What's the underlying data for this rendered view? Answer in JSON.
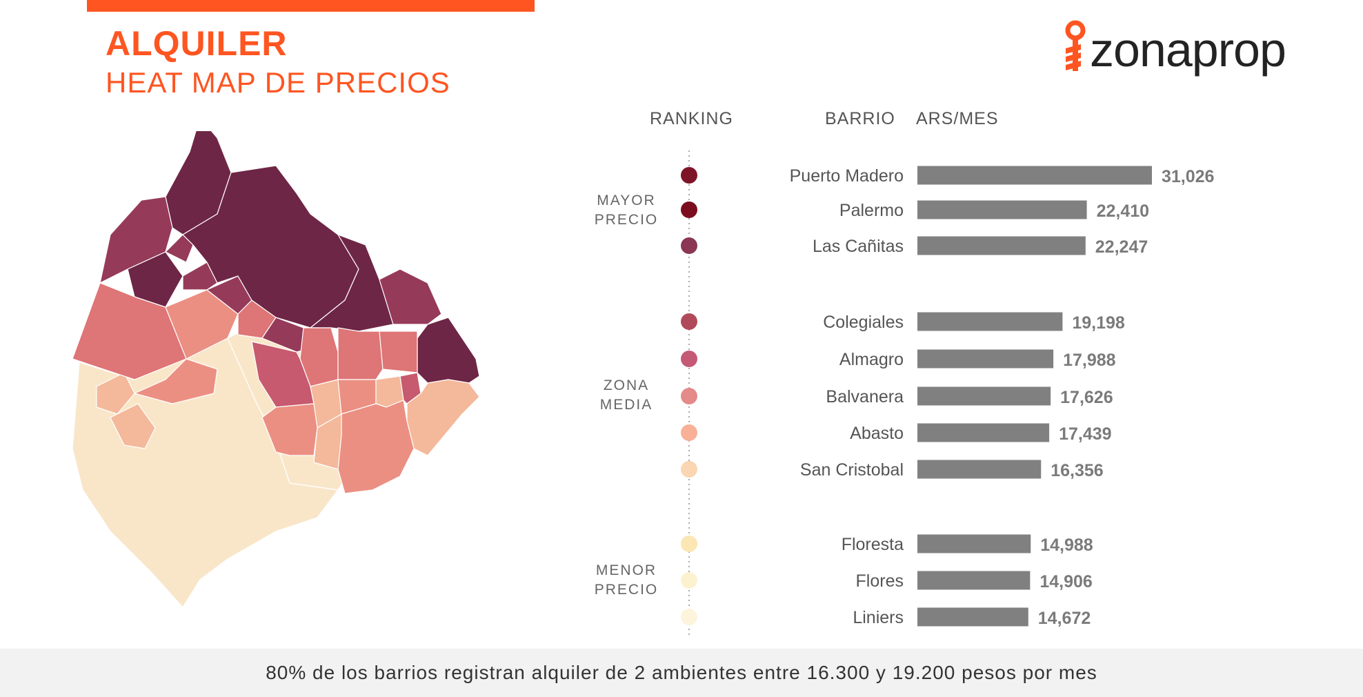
{
  "header": {
    "title": "ALQUILER",
    "subtitle": "HEAT MAP DE PRECIOS"
  },
  "brand": {
    "name": "zonaprop",
    "accent": "#fe5521"
  },
  "columns": {
    "ranking": "RANKING",
    "barrio": "BARRIO",
    "value": "ARS/MES"
  },
  "chart_data": {
    "type": "bar",
    "orientation": "horizontal",
    "groups": [
      {
        "label_line1": "MAYOR",
        "label_line2": "PRECIO",
        "items": [
          {
            "name": "Puerto Madero",
            "value": 31026,
            "value_label": "31,026",
            "dot": "#7e1428"
          },
          {
            "name": "Palermo",
            "value": 22410,
            "value_label": "22,410",
            "dot": "#7a0e1e"
          },
          {
            "name": "Las Cañitas",
            "value": 22247,
            "value_label": "22,247",
            "dot": "#8a3654"
          }
        ]
      },
      {
        "label_line1": "ZONA",
        "label_line2": "MEDIA",
        "items": [
          {
            "name": "Colegiales",
            "value": 19198,
            "value_label": "19,198",
            "dot": "#b04a5a"
          },
          {
            "name": "Almagro",
            "value": 17988,
            "value_label": "17,988",
            "dot": "#c55a76"
          },
          {
            "name": "Balvanera",
            "value": 17626,
            "value_label": "17,626",
            "dot": "#e48a88"
          },
          {
            "name": "Abasto",
            "value": 17439,
            "value_label": "17,439",
            "dot": "#f8b096"
          },
          {
            "name": "San Cristobal",
            "value": 16356,
            "value_label": "16,356",
            "dot": "#fad6b2"
          }
        ]
      },
      {
        "label_line1": "MENOR",
        "label_line2": "PRECIO",
        "items": [
          {
            "name": "Floresta",
            "value": 14988,
            "value_label": "14,988",
            "dot": "#fbe6b4"
          },
          {
            "name": "Flores",
            "value": 14906,
            "value_label": "14,906",
            "dot": "#fcf2d0"
          },
          {
            "name": "Liniers",
            "value": 14672,
            "value_label": "14,672",
            "dot": "#fdf4dc"
          }
        ]
      }
    ],
    "bar_color": "#808080",
    "value_color": "#7a7a7a"
  },
  "map_palette": [
    "#6e2646",
    "#963a5a",
    "#c75a6e",
    "#de7576",
    "#eb8f82",
    "#f4b89a",
    "#f9e6c9"
  ],
  "footer": {
    "text": "80% de los barrios registran alquiler de 2 ambientes entre 16.300 y 19.200 pesos por mes",
    "background": "#f2f2f2"
  }
}
